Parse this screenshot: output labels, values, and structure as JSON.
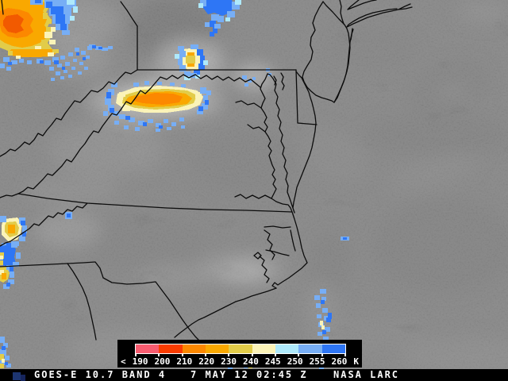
{
  "status_bar": {
    "product": "GOES-E 10.7 BAND 4",
    "datetime": "7 MAY 12 02:45 Z",
    "credit": "NASA LARC"
  },
  "legend": {
    "prefix_label": "<",
    "tick_labels": [
      "190",
      "200",
      "210",
      "220",
      "230",
      "240",
      "245",
      "250",
      "255",
      "260"
    ],
    "unit_label": "K",
    "segment_colors": [
      "#f85c70",
      "#fa3c00",
      "#fc8800",
      "#f9a800",
      "#e2cc49",
      "#fbf3b8",
      "#aee9fb",
      "#77aef5",
      "#2e76f5"
    ]
  },
  "palette": {
    "pink": "#f85c70",
    "red_orange": "#fa3c00",
    "orange": "#fc8800",
    "amber": "#f9a800",
    "mustard": "#e2cc49",
    "cream": "#fbf3b8",
    "pale_cyan": "#aee9fb",
    "sky_blue": "#77aef5",
    "vivid_blue": "#2e76f5",
    "map_border": "#0c0c0c",
    "background_gray": "#646464"
  }
}
